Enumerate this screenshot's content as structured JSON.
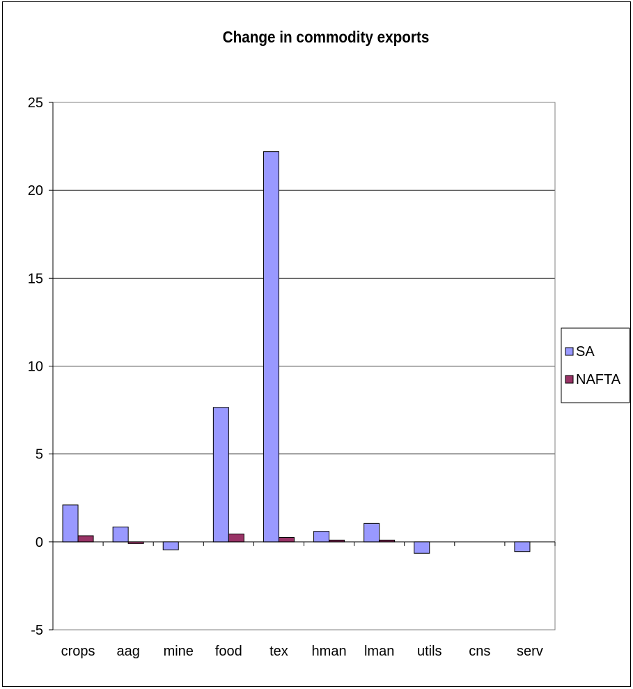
{
  "chart_data": {
    "type": "bar",
    "title": "Change in commodity exports",
    "xlabel": "",
    "ylabel": "",
    "categories": [
      "crops",
      "aag",
      "mine",
      "food",
      "tex",
      "hman",
      "lman",
      "utils",
      "cns",
      "serv"
    ],
    "series": [
      {
        "name": "SA",
        "color": "#9999ff",
        "values": [
          2.1,
          0.85,
          -0.45,
          7.65,
          22.2,
          0.6,
          1.05,
          -0.65,
          0.0,
          -0.55
        ]
      },
      {
        "name": "NAFTA",
        "color": "#993366",
        "values": [
          0.35,
          -0.1,
          0.0,
          0.45,
          0.25,
          0.1,
          0.1,
          0.0,
          0.0,
          0.0
        ]
      }
    ],
    "ylim": [
      -5,
      25
    ],
    "yticks": [
      "25",
      "20",
      "15",
      "10",
      "5",
      "0",
      "-5"
    ],
    "ytick_values": [
      25,
      20,
      15,
      10,
      5,
      0,
      -5
    ],
    "grid": true,
    "legend": "right"
  }
}
